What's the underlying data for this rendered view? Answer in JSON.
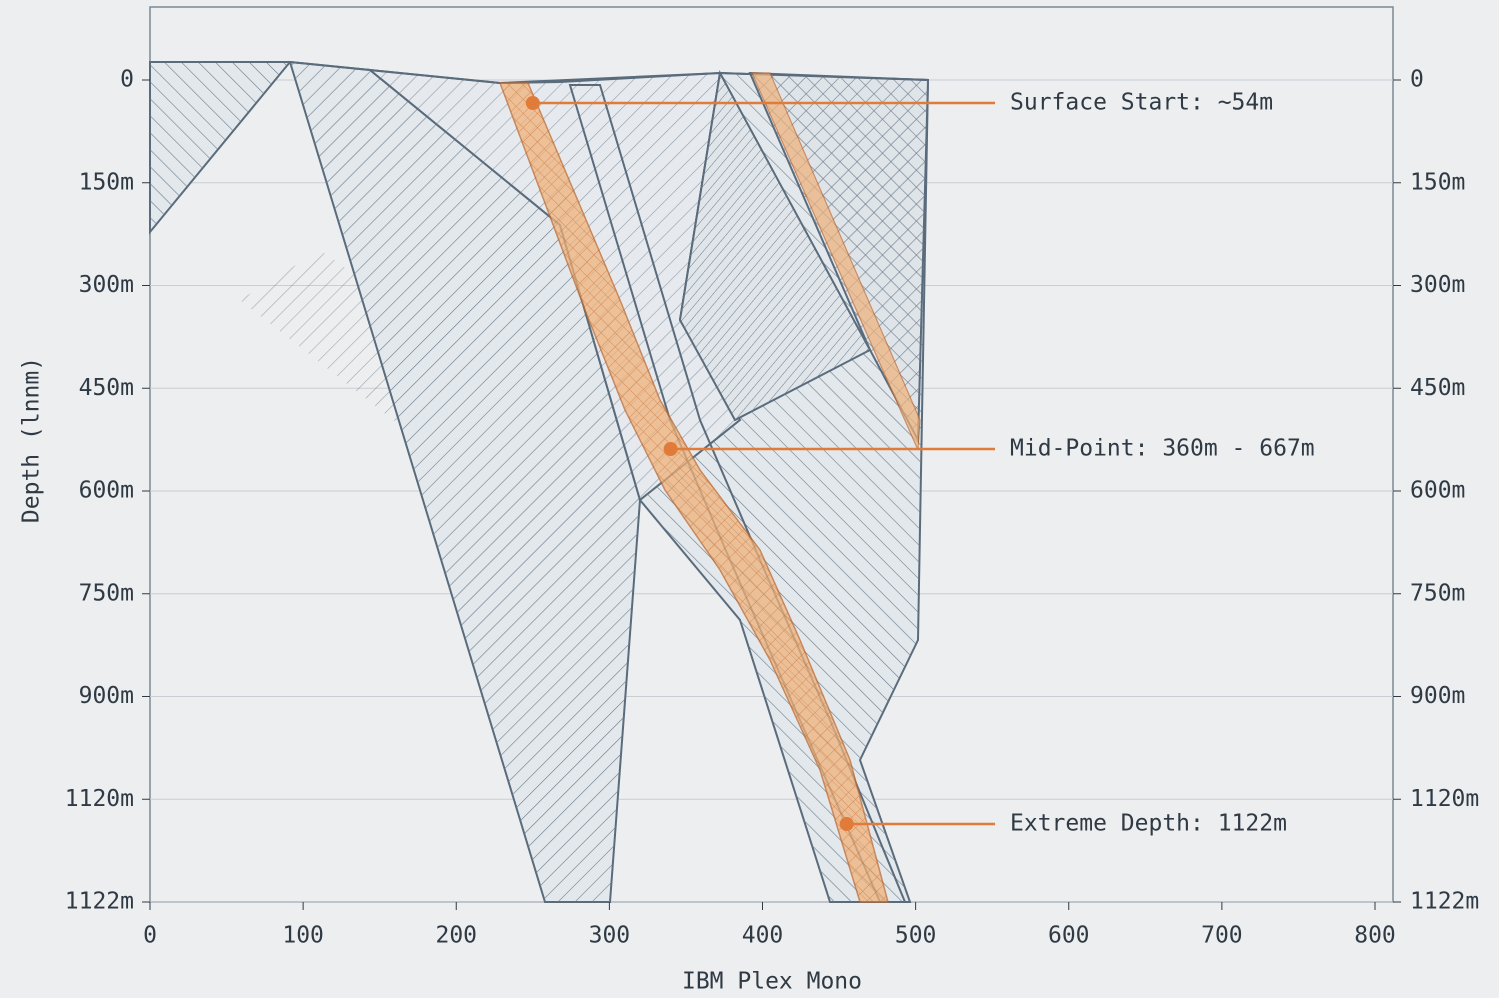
{
  "chart_data": {
    "type": "section",
    "y_label": "Depth (lnnm)",
    "x_label": "IBM Plex Mono",
    "xlim": [
      0,
      800
    ],
    "xticks": [
      0,
      100,
      200,
      300,
      400,
      500,
      600,
      700,
      800
    ],
    "y_categories": [
      "0",
      "150m",
      "300m",
      "450m",
      "600m",
      "750m",
      "900m",
      "1120m",
      "1122m"
    ],
    "annotations": [
      {
        "text": "Surface Start: ~54m",
        "x": 250
      },
      {
        "text": "Mid-Point: 360m - 667m",
        "x": 340
      },
      {
        "text": "Extreme Depth: 1122m",
        "x": 455
      }
    ],
    "color": "#e07b39"
  }
}
